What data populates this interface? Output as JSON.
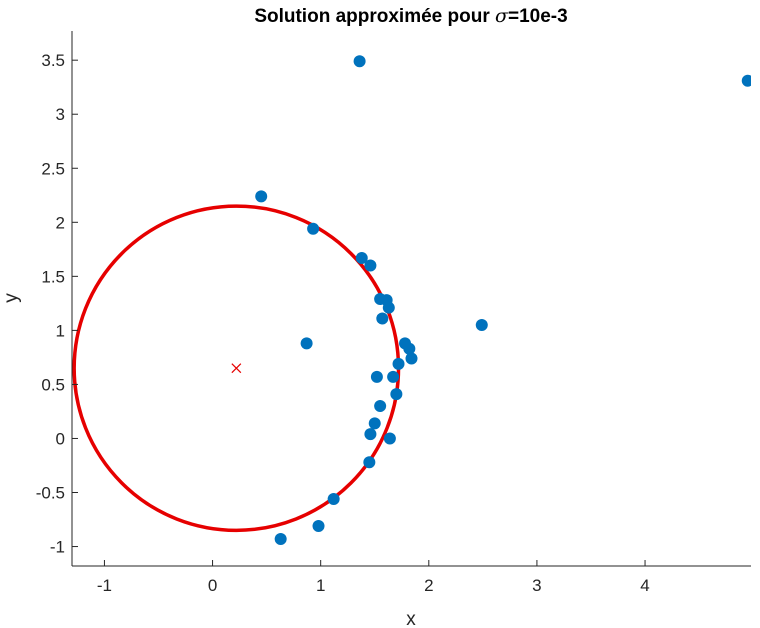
{
  "chart_data": {
    "type": "scatter",
    "title_prefix": "Solution approximée pour ",
    "title_symbol": "σ",
    "title_suffix": "=10e-3",
    "xlabel": "x",
    "ylabel": "y",
    "xlim": [
      -1.3,
      4.98
    ],
    "ylim": [
      -1.18,
      3.77
    ],
    "xticks": [
      -1,
      0,
      1,
      2,
      3,
      4
    ],
    "xtick_labels": [
      "-1",
      "0",
      "1",
      "2",
      "3",
      "4"
    ],
    "yticks": [
      -1,
      -0.5,
      0,
      0.5,
      1,
      1.5,
      2,
      2.5,
      3,
      3.5
    ],
    "ytick_labels": [
      "-1",
      "-0.5",
      "0",
      "0.5",
      "1",
      "1.5",
      "2",
      "2.5",
      "3",
      "3.5"
    ],
    "grid": false,
    "colors": {
      "points": "#0072BD",
      "circle": "#E60000",
      "center": "#E60000",
      "axis": "#262626"
    },
    "points": [
      {
        "x": 1.36,
        "y": 3.49
      },
      {
        "x": 4.95,
        "y": 3.31
      },
      {
        "x": 0.45,
        "y": 2.24
      },
      {
        "x": 0.93,
        "y": 1.94
      },
      {
        "x": 1.38,
        "y": 1.67
      },
      {
        "x": 1.46,
        "y": 1.6
      },
      {
        "x": 1.55,
        "y": 1.29
      },
      {
        "x": 1.61,
        "y": 1.28
      },
      {
        "x": 1.63,
        "y": 1.21
      },
      {
        "x": 1.57,
        "y": 1.11
      },
      {
        "x": 2.49,
        "y": 1.05
      },
      {
        "x": 0.87,
        "y": 0.88
      },
      {
        "x": 1.78,
        "y": 0.88
      },
      {
        "x": 1.82,
        "y": 0.83
      },
      {
        "x": 1.84,
        "y": 0.74
      },
      {
        "x": 1.72,
        "y": 0.69
      },
      {
        "x": 1.52,
        "y": 0.57
      },
      {
        "x": 1.67,
        "y": 0.57
      },
      {
        "x": 1.7,
        "y": 0.41
      },
      {
        "x": 1.55,
        "y": 0.3
      },
      {
        "x": 1.5,
        "y": 0.14
      },
      {
        "x": 1.46,
        "y": 0.04
      },
      {
        "x": 1.64,
        "y": 0.0
      },
      {
        "x": 1.45,
        "y": -0.22
      },
      {
        "x": 1.12,
        "y": -0.56
      },
      {
        "x": 0.98,
        "y": -0.81
      },
      {
        "x": 0.63,
        "y": -0.93
      }
    ],
    "circle": {
      "cx": 0.22,
      "cy": 0.65,
      "r": 1.5
    },
    "center_marker": {
      "x": 0.22,
      "y": 0.65,
      "symbol": "x"
    }
  }
}
